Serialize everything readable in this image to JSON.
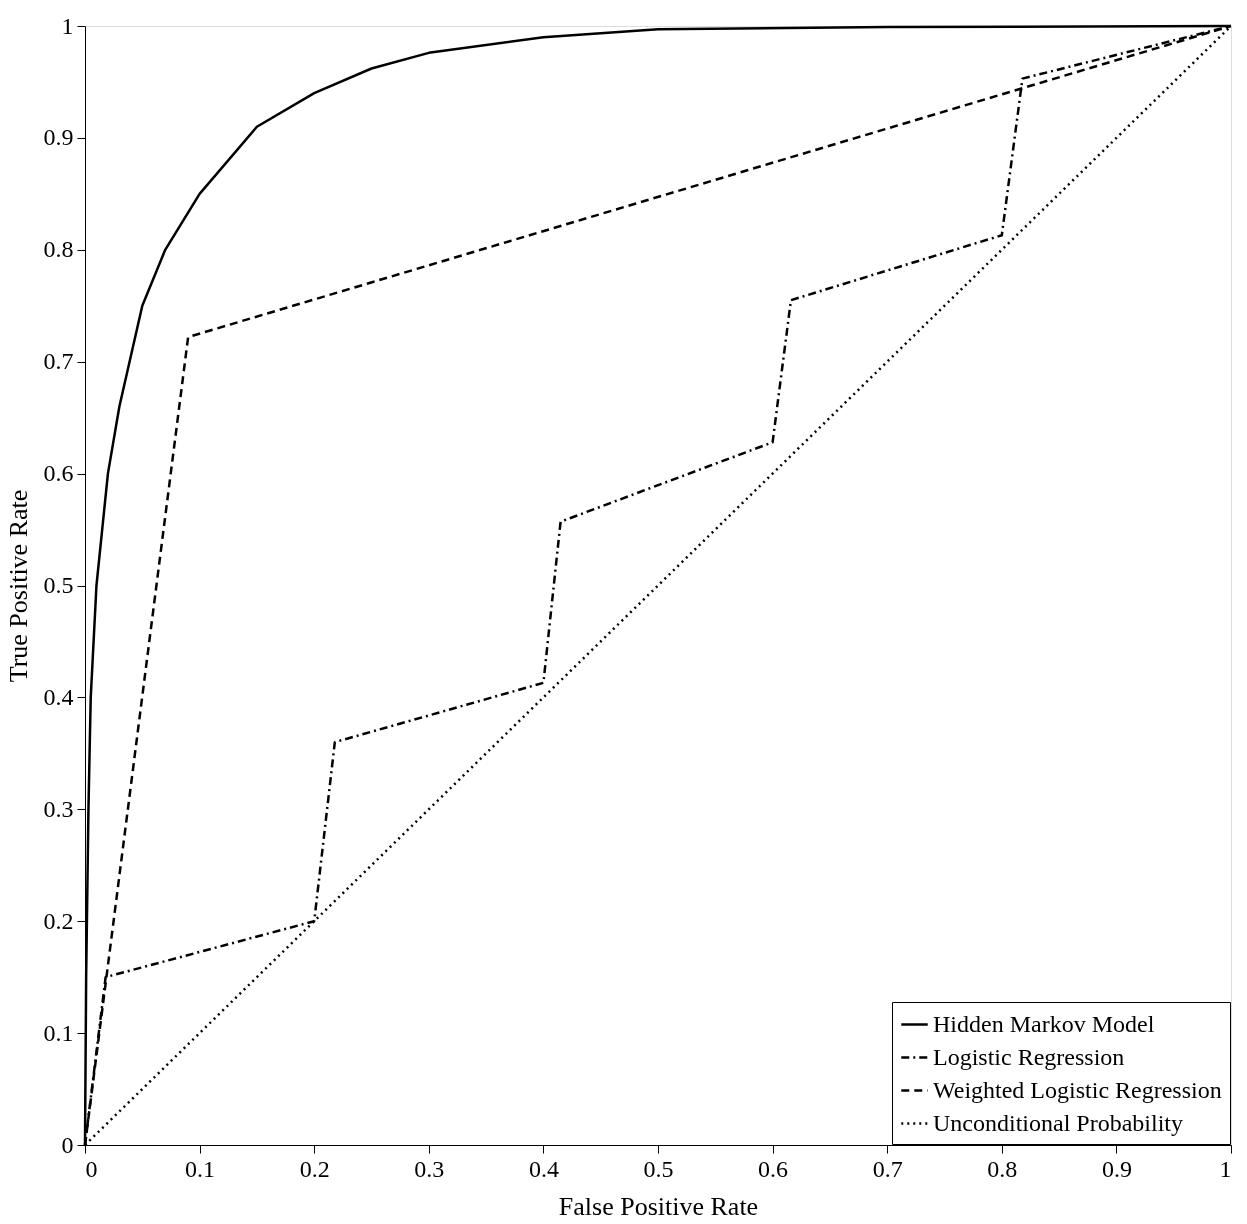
{
  "chart_data": {
    "type": "line",
    "xlabel": "False Positive Rate",
    "ylabel": "True Positive Rate",
    "xlim": [
      0,
      1
    ],
    "ylim": [
      0,
      1
    ],
    "xticks": [
      0,
      0.1,
      0.2,
      0.3,
      0.4,
      0.5,
      0.6,
      0.7,
      0.8,
      0.9,
      1
    ],
    "yticks": [
      0,
      0.1,
      0.2,
      0.3,
      0.4,
      0.5,
      0.6,
      0.7,
      0.8,
      0.9,
      1
    ],
    "legend": "bottom right",
    "marker": "none",
    "series": [
      {
        "name": "Hidden Markov Model",
        "color": "#000000",
        "line_style": "solid",
        "x": [
          0,
          0.001,
          0.003,
          0.005,
          0.01,
          0.02,
          0.03,
          0.05,
          0.07,
          0.1,
          0.15,
          0.2,
          0.25,
          0.3,
          0.4,
          0.5,
          0.7,
          1
        ],
        "values": [
          0,
          0.15,
          0.3,
          0.4,
          0.5,
          0.6,
          0.66,
          0.75,
          0.8,
          0.85,
          0.91,
          0.94,
          0.962,
          0.976,
          0.99,
          0.997,
          0.999,
          1
        ]
      },
      {
        "name": "Logistic Regression",
        "color": "#000000",
        "line_style": "dashdot",
        "x": [
          0,
          0.018,
          0.2,
          0.218,
          0.4,
          0.415,
          0.6,
          0.616,
          0.8,
          0.818,
          1
        ],
        "values": [
          0,
          0.15,
          0.2,
          0.36,
          0.413,
          0.557,
          0.628,
          0.755,
          0.813,
          0.953,
          1
        ]
      },
      {
        "name": "Weighted Logistic Regression",
        "color": "#000000",
        "line_style": "dashed",
        "x": [
          0,
          0.09,
          1
        ],
        "values": [
          0,
          0.722,
          1
        ]
      },
      {
        "name": "Unconditional Probability",
        "color": "#000000",
        "line_style": "dotted",
        "x": [
          0,
          1
        ],
        "values": [
          0,
          1
        ]
      }
    ]
  }
}
